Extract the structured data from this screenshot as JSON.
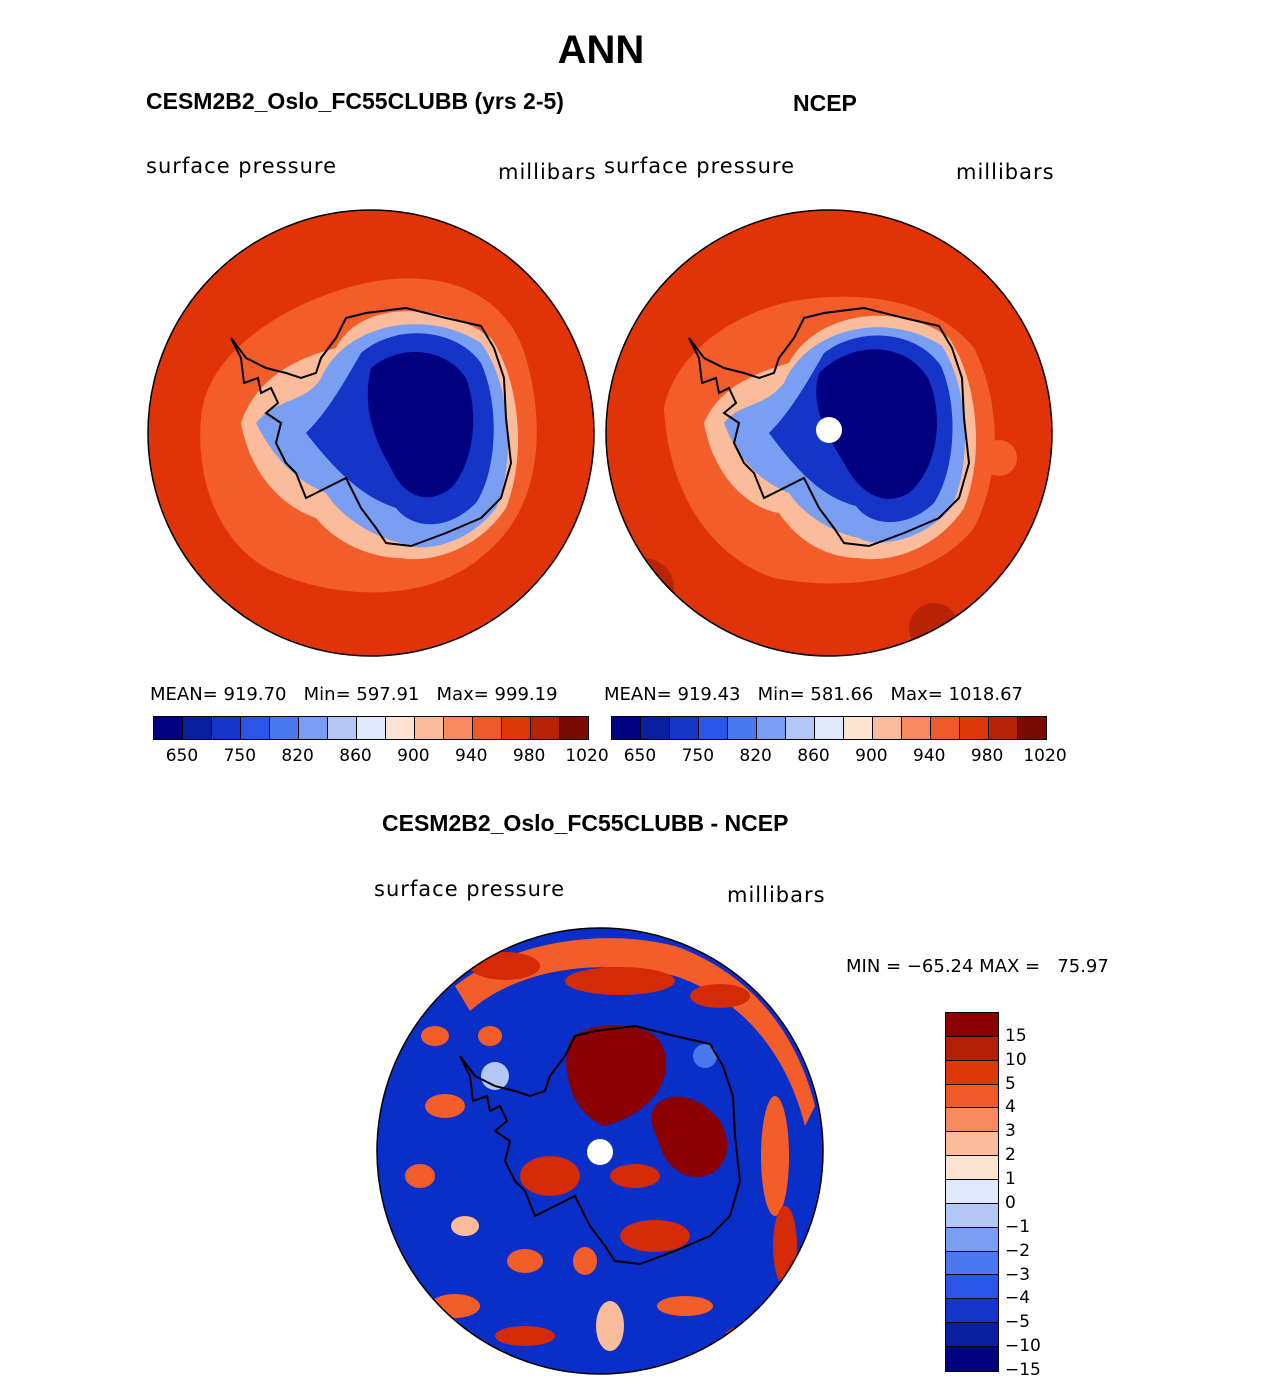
{
  "title": "ANN",
  "panels": [
    {
      "title": "CESM2B2_Oslo_FC55CLUBB (yrs 2-5)",
      "variable": "surface pressure",
      "units": "millibars",
      "stats": "MEAN= 919.70   Min= 597.91   Max= 999.19"
    },
    {
      "title": "NCEP",
      "variable": "surface pressure",
      "units": "millibars",
      "stats": "MEAN= 919.43   Min= 581.66   Max= 1018.67"
    }
  ],
  "colorbar": {
    "colors": [
      "#000080",
      "#0a1fa0",
      "#1535c8",
      "#2a55e6",
      "#4a78ee",
      "#7a9ef2",
      "#b3c8f6",
      "#dfe9fb",
      "#fde3d2",
      "#fbbc9c",
      "#f78a60",
      "#ee5a2a",
      "#de3808",
      "#b82306",
      "#7a0a02"
    ],
    "ticks": [
      "650",
      "750",
      "820",
      "860",
      "900",
      "940",
      "980",
      "1020"
    ]
  },
  "diff": {
    "title": "CESM2B2_Oslo_FC55CLUBB - NCEP",
    "variable": "surface pressure",
    "units": "millibars",
    "minmax": "MIN = −65.24 MAX =   75.97",
    "colors": [
      "#8b0000",
      "#b22005",
      "#de3808",
      "#ee5a2a",
      "#f78a60",
      "#fbbc9c",
      "#fde3d2",
      "#dfe9fb",
      "#b3c8f6",
      "#7a9ef2",
      "#4a78ee",
      "#2a55e6",
      "#1535c8",
      "#0a1fa0",
      "#000080"
    ],
    "ticks": [
      "15",
      "10",
      "5",
      "4",
      "3",
      "2",
      "1",
      "0",
      "−1",
      "−2",
      "−3",
      "−4",
      "−5",
      "−10",
      "−15"
    ]
  },
  "palette": {
    "ocean_red": "#e03408",
    "orange": "#f35d2a",
    "dark_red": "#b82306",
    "deep_blue": "#000080",
    "mid_blue": "#1535c8",
    "light_blue": "#7a9ef2",
    "diff_blue": "#0a2fc8",
    "diff_red": "#d42a06",
    "diff_darkred": "#8b0000"
  }
}
